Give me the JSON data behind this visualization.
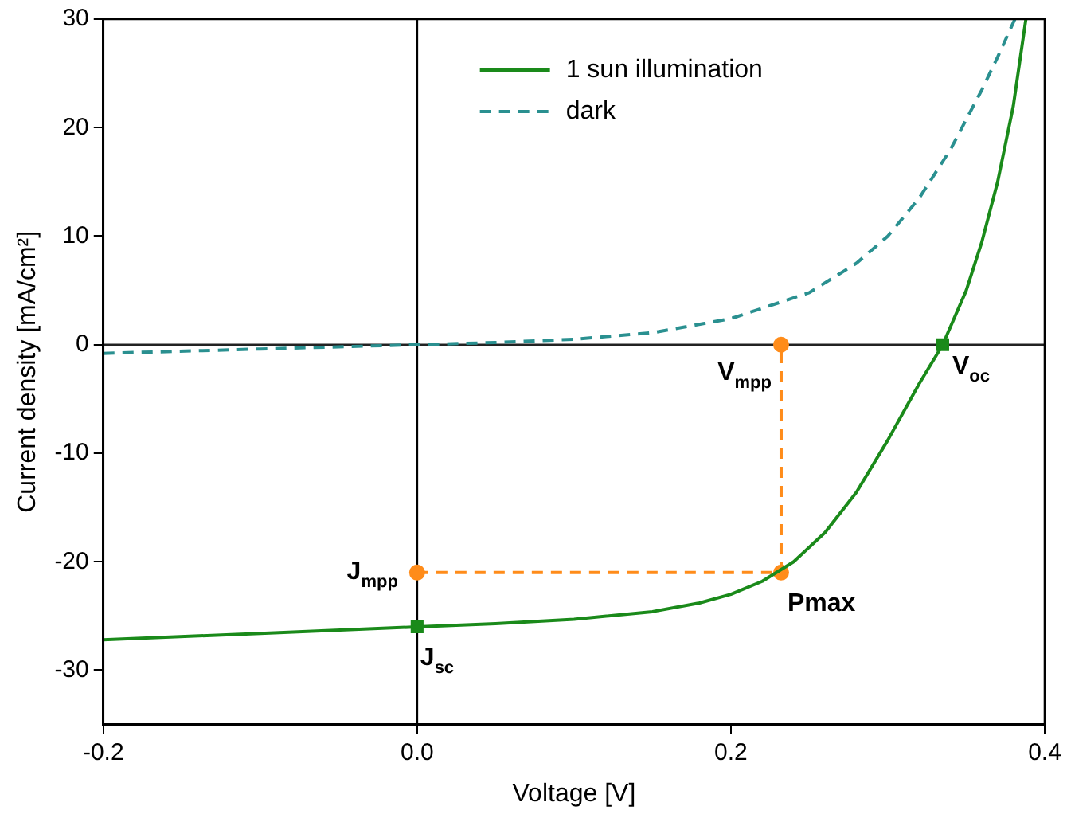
{
  "chart_data": {
    "type": "line",
    "xlabel": "Voltage [V]",
    "ylabel": "Current density [mA/cm²]",
    "xlim": [
      -0.2,
      0.4
    ],
    "xticks": [
      -0.2,
      {
        "value": 0,
        "label": "0.0"
      },
      0.2,
      0.4
    ],
    "ylim": [
      -35,
      30
    ],
    "yticks": [
      -30,
      -20,
      -10,
      0,
      10,
      20,
      30
    ],
    "grid": false,
    "legend": "top right",
    "ref_lines": [
      {
        "axis": "x",
        "value": 0,
        "color": "#000000"
      },
      {
        "axis": "y",
        "value": 0,
        "color": "#222222"
      }
    ],
    "series": [
      {
        "name": "1 sun illumination",
        "color": "#1a8a1a",
        "line_style": "solid",
        "marker": "none",
        "x": [
          -0.2,
          -0.1,
          0,
          0.05,
          0.1,
          0.15,
          0.18,
          0.2,
          0.22,
          0.24,
          0.26,
          0.28,
          0.3,
          0.32,
          0.335,
          0.35,
          0.36,
          0.37,
          0.38,
          0.388
        ],
        "values": [
          -27.2,
          -26.6,
          -26,
          -25.7,
          -25.3,
          -24.6,
          -23.8,
          -23,
          -21.8,
          -20,
          -17.3,
          -13.6,
          -8.8,
          -3.6,
          0,
          5,
          9.5,
          15,
          22,
          30
        ]
      },
      {
        "name": "dark",
        "color": "#2a9090",
        "line_style": "dashed",
        "marker": "none",
        "x": [
          -0.2,
          -0.1,
          0,
          0.05,
          0.1,
          0.15,
          0.2,
          0.25,
          0.28,
          0.3,
          0.32,
          0.34,
          0.36,
          0.37,
          0.381
        ],
        "values": [
          -0.8,
          -0.4,
          0,
          0.2,
          0.5,
          1.1,
          2.4,
          4.8,
          7.5,
          10,
          13.5,
          18,
          23.5,
          26.5,
          30
        ]
      },
      {
        "color": "#ff8c1a",
        "line_style": "dashed",
        "marker": "circle",
        "x": [
          0,
          0.232,
          0.232
        ],
        "values": [
          -21,
          -21,
          0
        ]
      },
      {
        "type": "scatter",
        "color": "#1a8a1a",
        "marker": "square",
        "x": [
          0,
          0.335
        ],
        "values": [
          -26,
          0
        ]
      }
    ],
    "annotations": [
      {
        "text": "J$_{sc}$",
        "x": 0,
        "y": -26
      },
      {
        "text": "V$_{oc}$",
        "x": 0.335,
        "y": 0
      },
      {
        "text": "Pmax",
        "x": 0.232,
        "y": -21
      },
      {
        "text": "V$_{mpp}$",
        "x": 0.232,
        "y": 0
      },
      {
        "text": "J$_{mpp}$",
        "x": 0,
        "y": -21
      }
    ]
  }
}
